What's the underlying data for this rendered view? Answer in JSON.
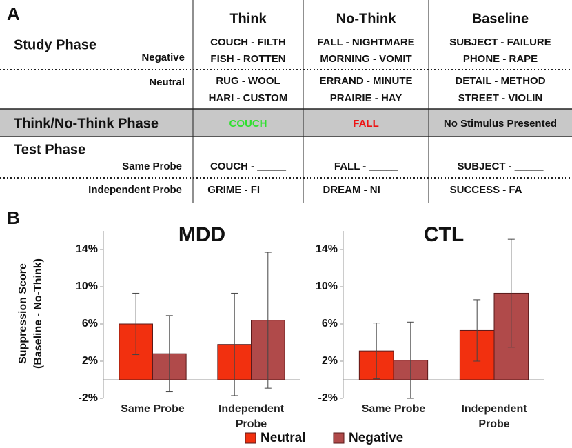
{
  "panel_a": {
    "label": "A",
    "columns": [
      "Think",
      "No-Think",
      "Baseline"
    ],
    "study_phase": {
      "title": "Study Phase",
      "groups": [
        {
          "label": "Negative",
          "cells": [
            [
              "COUCH - FILTH",
              "FISH - ROTTEN"
            ],
            [
              "FALL - NIGHTMARE",
              "MORNING - VOMIT"
            ],
            [
              "SUBJECT - FAILURE",
              "PHONE - RAPE"
            ]
          ]
        },
        {
          "label": "Neutral",
          "cells": [
            [
              "RUG - WOOL",
              "HARI - CUSTOM"
            ],
            [
              "ERRAND - MINUTE",
              "PRAIRIE - HAY"
            ],
            [
              "DETAIL - METHOD",
              "STREET - VIOLIN"
            ]
          ]
        }
      ]
    },
    "tnt_phase": {
      "title": "Think/No-Think Phase",
      "cells": [
        "COUCH",
        "FALL",
        "No Stimulus Presented"
      ]
    },
    "test_phase": {
      "title": "Test Phase",
      "rows": [
        {
          "label": "Same Probe",
          "cells": [
            "COUCH - _____",
            "FALL - _____",
            "SUBJECT - _____"
          ]
        },
        {
          "label": "Independent Probe",
          "cells": [
            "GRIME - FI_____",
            "DREAM - NI_____",
            "SUCCESS - FA_____"
          ]
        }
      ]
    }
  },
  "panel_b": {
    "label": "B",
    "y_label": [
      "Suppression Score",
      "(Baseline - No-Think)"
    ]
  },
  "chart_data": [
    {
      "type": "bar",
      "title": "MDD",
      "categories": [
        "Same Probe",
        "Independent Probe"
      ],
      "series": [
        {
          "name": "Neutral",
          "color": "#f2300f",
          "values": [
            6.0,
            3.8
          ],
          "errors": [
            3.3,
            5.5
          ]
        },
        {
          "name": "Negative",
          "color": "#b04a4a",
          "values": [
            2.8,
            6.4
          ],
          "errors": [
            4.1,
            7.3
          ]
        }
      ],
      "ylim": [
        -2,
        16
      ],
      "yticks": [
        {
          "value": -2,
          "label": "-2%"
        },
        {
          "value": 2,
          "label": "2%"
        },
        {
          "value": 6,
          "label": "6%"
        },
        {
          "value": 10,
          "label": "10%"
        },
        {
          "value": 14,
          "label": "14%"
        }
      ]
    },
    {
      "type": "bar",
      "title": "CTL",
      "categories": [
        "Same Probe",
        "Independent Probe"
      ],
      "series": [
        {
          "name": "Neutral",
          "color": "#f2300f",
          "values": [
            3.1,
            5.3
          ],
          "errors": [
            3.0,
            3.3
          ]
        },
        {
          "name": "Negative",
          "color": "#b04a4a",
          "values": [
            2.1,
            9.3
          ],
          "errors": [
            4.1,
            5.8
          ]
        }
      ],
      "ylim": [
        -2,
        16
      ],
      "yticks": [
        {
          "value": -2,
          "label": "-2%"
        },
        {
          "value": 2,
          "label": "2%"
        },
        {
          "value": 6,
          "label": "6%"
        },
        {
          "value": 10,
          "label": "10%"
        },
        {
          "value": 14,
          "label": "14%"
        }
      ]
    }
  ]
}
